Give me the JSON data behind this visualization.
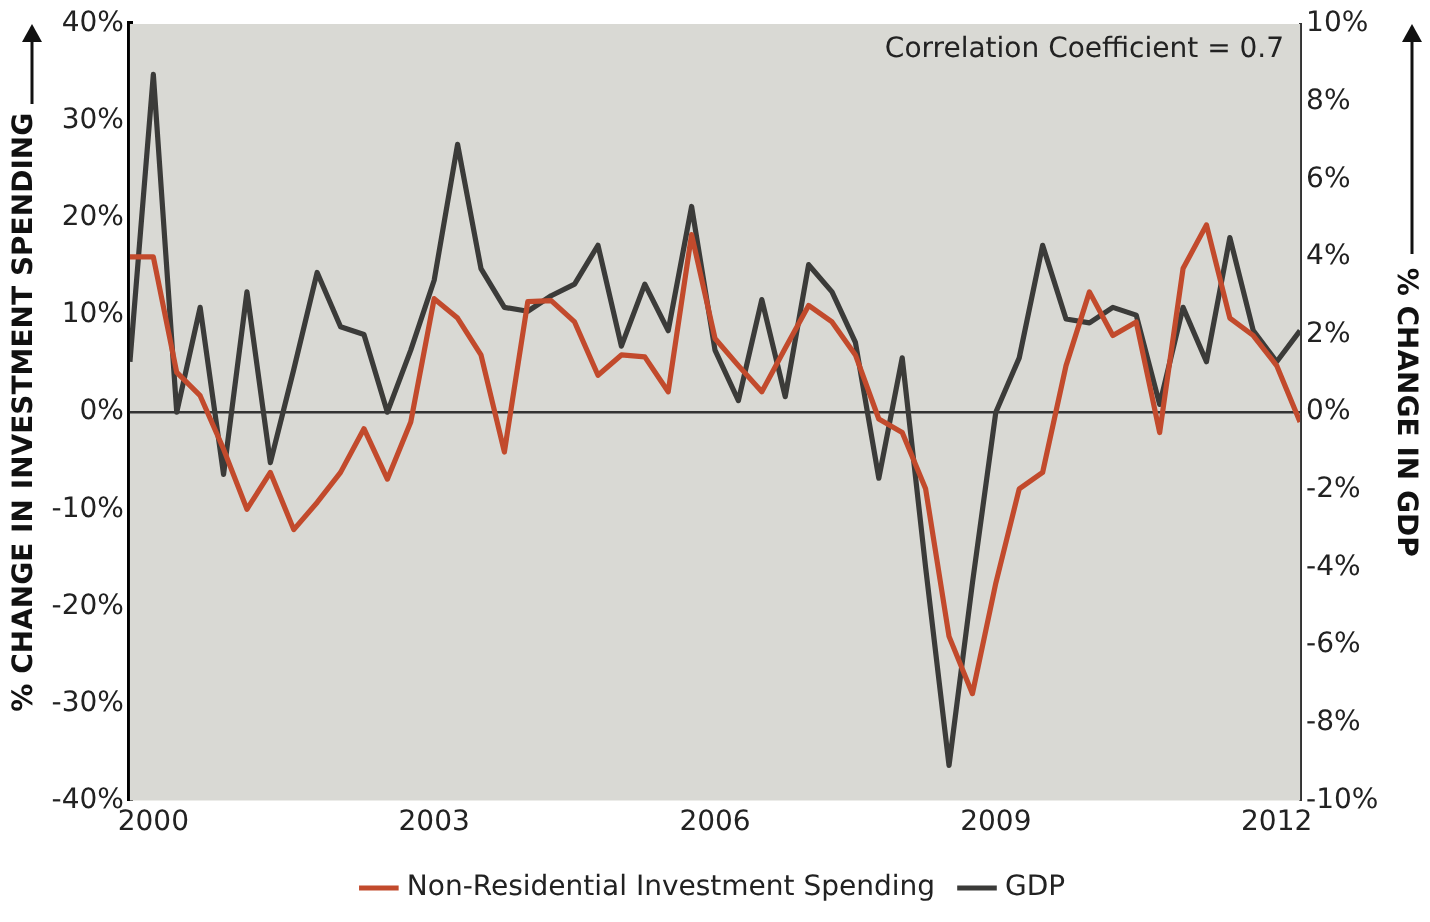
{
  "chart_data": {
    "type": "line",
    "ylabel": "% CHANGE IN INVESTMENT SPENDING",
    "y2label": "% CHANGE IN GDP",
    "x": [
      1999.75,
      2000,
      2000.25,
      2000.5,
      2000.75,
      2001,
      2001.25,
      2001.5,
      2001.75,
      2002,
      2002.25,
      2002.5,
      2002.75,
      2003,
      2003.25,
      2003.5,
      2003.75,
      2004,
      2004.25,
      2004.5,
      2004.75,
      2005,
      2005.25,
      2005.5,
      2005.75,
      2006,
      2006.25,
      2006.5,
      2006.75,
      2007,
      2007.25,
      2007.5,
      2007.75,
      2008,
      2008.25,
      2008.5,
      2008.75,
      2009,
      2009.25,
      2009.5,
      2009.75,
      2010,
      2010.25,
      2010.5,
      2010.75,
      2011,
      2011.25,
      2011.5,
      2011.75,
      2012,
      2012.25
    ],
    "series": [
      {
        "name": "Non-Residential Investment Spending",
        "color": "#c24a2c",
        "values": [
          16,
          16,
          4.1,
          1.7,
          -3.8,
          -10,
          -6.2,
          -12.1,
          -9.3,
          -6.2,
          -1.7,
          -6.9,
          -1,
          11.7,
          9.7,
          5.9,
          -4.1,
          11.4,
          11.5,
          9.3,
          3.8,
          5.9,
          5.7,
          2.1,
          18.3,
          7.6,
          4.8,
          2.1,
          6.6,
          11,
          9.3,
          5.9,
          -0.7,
          -2.1,
          -7.9,
          -23.1,
          -29,
          -17.6,
          -7.9,
          -6.2,
          4.8,
          12.4,
          7.9,
          9.3,
          -2.1,
          14.8,
          19.3,
          9.7,
          7.9,
          4.8,
          -1
        ]
      },
      {
        "name": "GDP",
        "color": "#3b3b39",
        "axis": "y2",
        "values": [
          1.3,
          8.7,
          0,
          2.7,
          -1.6,
          3.1,
          -1.3,
          1.1,
          3.6,
          2.2,
          2,
          0,
          1.6,
          3.4,
          6.9,
          3.7,
          2.7,
          2.6,
          3,
          3.3,
          4.3,
          1.7,
          3.3,
          2.1,
          5.3,
          1.6,
          0.3,
          2.9,
          0.4,
          3.8,
          3.1,
          1.8,
          -1.7,
          1.4,
          -4,
          -9.1,
          -4.4,
          0,
          1.4,
          4.3,
          2.4,
          2.3,
          2.7,
          2.5,
          0.2,
          2.7,
          1.3,
          4.5,
          2.1,
          1.3,
          2.1
        ]
      }
    ],
    "xlim": [
      1999.75,
      2012.25
    ],
    "xticks": [
      2000,
      2003,
      2006,
      2009,
      2012
    ],
    "ylim": [
      -40,
      40
    ],
    "yticks": [
      {
        "value": -40,
        "label": "-40%"
      },
      {
        "value": -30,
        "label": "-30%"
      },
      {
        "value": -20,
        "label": "-20%"
      },
      {
        "value": -10,
        "label": "-10%"
      },
      {
        "value": 0,
        "label": "0%"
      },
      {
        "value": 10,
        "label": "10%"
      },
      {
        "value": 20,
        "label": "20%"
      },
      {
        "value": 30,
        "label": "30%"
      },
      {
        "value": 40,
        "label": "40%"
      }
    ],
    "y2lim": [
      -10,
      10
    ],
    "y2ticks": [
      {
        "value": -10,
        "label": "-10%"
      },
      {
        "value": -8,
        "label": "-8%"
      },
      {
        "value": -6,
        "label": "-6%"
      },
      {
        "value": -4,
        "label": "-4%"
      },
      {
        "value": -2,
        "label": "-2%"
      },
      {
        "value": 0,
        "label": "0%"
      },
      {
        "value": 2,
        "label": "2%"
      },
      {
        "value": 4,
        "label": "4%"
      },
      {
        "value": 6,
        "label": "6%"
      },
      {
        "value": 8,
        "label": "8%"
      },
      {
        "value": 10,
        "label": "10%"
      }
    ],
    "ref_lines": [
      {
        "axis": "y",
        "value": 0,
        "color": "#333333"
      }
    ],
    "annotations": [
      "Correlation Coefficient = 0.7"
    ],
    "legend": "bottom",
    "grid": false,
    "marker": "none",
    "line_style": "solid"
  }
}
